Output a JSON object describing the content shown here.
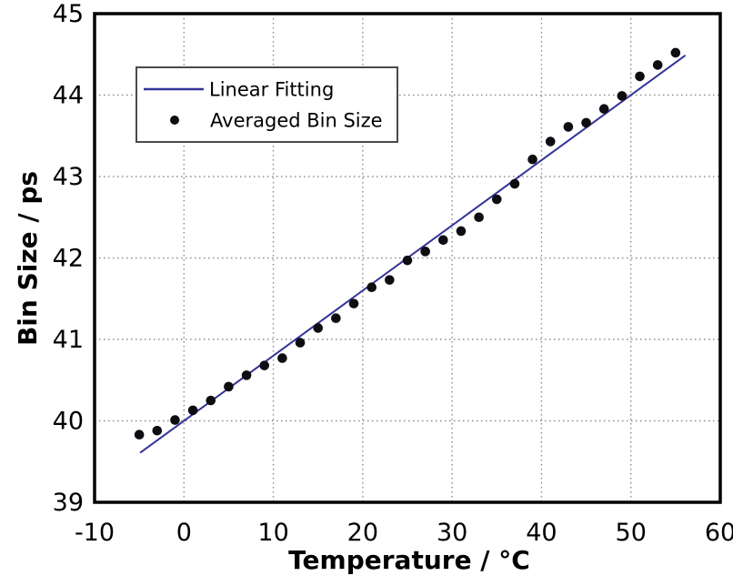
{
  "chart_data": {
    "type": "scatter",
    "title": "",
    "xlabel": "Temperature / °C",
    "ylabel": "Bin Size / ps",
    "xlim": [
      -10,
      60
    ],
    "ylim": [
      39,
      45
    ],
    "x_ticks": [
      -10,
      0,
      10,
      20,
      30,
      40,
      50,
      60
    ],
    "x_tick_labels": [
      "-10",
      "0",
      "10",
      "20",
      "30",
      "40",
      "50",
      "60"
    ],
    "y_ticks": [
      39,
      40,
      41,
      42,
      43,
      44,
      45
    ],
    "y_tick_labels": [
      "39",
      "40",
      "41",
      "42",
      "43",
      "44",
      "45"
    ],
    "grid": true,
    "legend": {
      "position": "top-left",
      "entries": [
        {
          "label": "Linear Fitting",
          "marker": "line"
        },
        {
          "label": "Averaged Bin Size",
          "marker": "dot"
        }
      ]
    },
    "series": [
      {
        "name": "Linear Fitting",
        "type": "line",
        "color": "#333399",
        "fit": {
          "slope": 0.08,
          "intercept": 40.0,
          "x_start": -4.9,
          "x_end": 56.1
        }
      },
      {
        "name": "Averaged Bin Size",
        "type": "scatter",
        "color": "#0d0d12",
        "x": [
          -5,
          -3,
          -1,
          1,
          3,
          5,
          7,
          9,
          11,
          13,
          15,
          17,
          19,
          21,
          23,
          25,
          27,
          29,
          31,
          33,
          35,
          37,
          39,
          41,
          43,
          45,
          47,
          49,
          51,
          53,
          55
        ],
        "y": [
          39.83,
          39.88,
          40.01,
          40.13,
          40.25,
          40.42,
          40.56,
          40.68,
          40.77,
          40.96,
          41.14,
          41.26,
          41.44,
          41.64,
          41.73,
          41.97,
          42.08,
          42.22,
          42.33,
          42.5,
          42.72,
          42.91,
          43.21,
          43.43,
          43.61,
          43.66,
          43.83,
          43.99,
          44.23,
          44.37,
          44.52
        ]
      }
    ],
    "style": {
      "grid_color": "#8c8c8c",
      "frame_color": "#000000",
      "legend_border_color": "#4a4a4a",
      "background": "#ffffff"
    }
  }
}
